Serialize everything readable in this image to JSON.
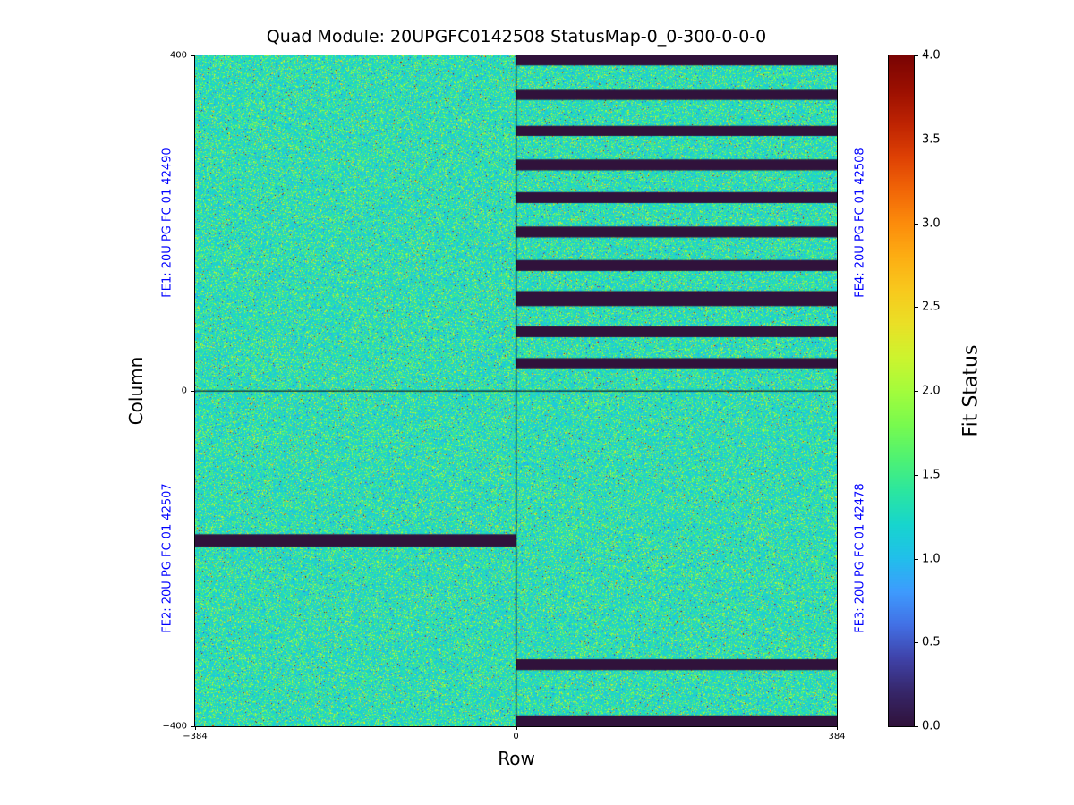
{
  "colors": {
    "fe_label": "#0000ff",
    "stripe": "#30123b",
    "axis": "#000000"
  },
  "chart_data": {
    "type": "heatmap",
    "title": "Quad Module: 20UPGFC0142508 StatusMap-0_0-300-0-0-0",
    "xlabel": "Row",
    "ylabel": "Column",
    "value_label": "Fit Status",
    "value_range": [
      0,
      4
    ],
    "x_range": [
      -384,
      384
    ],
    "y_range": [
      -400,
      400
    ],
    "colormap": "turbo",
    "x_ticks": [
      {
        "value": -384,
        "label": "−384"
      },
      {
        "value": 0,
        "label": "0"
      },
      {
        "value": 384,
        "label": "384"
      }
    ],
    "y_ticks": [
      {
        "value": 400,
        "label": "400"
      },
      {
        "value": 0,
        "label": "0"
      },
      {
        "value": -400,
        "label": "−400"
      }
    ],
    "colorbar_ticks": [
      {
        "value": 4.0,
        "label": "4.0"
      },
      {
        "value": 3.5,
        "label": "3.5"
      },
      {
        "value": 3.0,
        "label": "3.0"
      },
      {
        "value": 2.5,
        "label": "2.5"
      },
      {
        "value": 2.0,
        "label": "2.0"
      },
      {
        "value": 1.5,
        "label": "1.5"
      },
      {
        "value": 1.0,
        "label": "1.0"
      },
      {
        "value": 0.5,
        "label": "0.5"
      },
      {
        "value": 0.0,
        "label": "0.0"
      }
    ],
    "quadrants": [
      {
        "fe": "FE1",
        "label": "FE1: 20U PG FC 01 42490",
        "x": [
          -384,
          0
        ],
        "y": [
          0,
          400
        ],
        "label_side": "left"
      },
      {
        "fe": "FE2",
        "label": "FE2: 20U PG FC 01 42507",
        "x": [
          -384,
          0
        ],
        "y": [
          -400,
          0
        ],
        "label_side": "left"
      },
      {
        "fe": "FE3",
        "label": "FE3: 20U PG FC 01 42478",
        "x": [
          0,
          384
        ],
        "y": [
          -400,
          0
        ],
        "label_side": "right"
      },
      {
        "fe": "FE4",
        "label": "FE4: 20U PG FC 01 42508",
        "x": [
          0,
          384
        ],
        "y": [
          0,
          400
        ],
        "label_side": "right"
      }
    ],
    "background": {
      "description": "speckled noise of fit-status values, predominantly ~1.0 (cyan) with scattered 1.3–2.2 (green/yellow) pixels and rare blue/orange outliers",
      "dominant_value": 1.0
    },
    "dead_stripes": [
      {
        "x": [
          0,
          384
        ],
        "y": [
          388,
          400
        ],
        "value": 0
      },
      {
        "x": [
          0,
          384
        ],
        "y": [
          347,
          359
        ],
        "value": 0
      },
      {
        "x": [
          0,
          384
        ],
        "y": [
          304,
          316
        ],
        "value": 0
      },
      {
        "x": [
          0,
          384
        ],
        "y": [
          263,
          276
        ],
        "value": 0
      },
      {
        "x": [
          0,
          384
        ],
        "y": [
          224,
          237
        ],
        "value": 0
      },
      {
        "x": [
          0,
          384
        ],
        "y": [
          183,
          196
        ],
        "value": 0
      },
      {
        "x": [
          0,
          384
        ],
        "y": [
          143,
          156
        ],
        "value": 0
      },
      {
        "x": [
          0,
          384
        ],
        "y": [
          101,
          119
        ],
        "value": 0
      },
      {
        "x": [
          0,
          384
        ],
        "y": [
          64,
          77
        ],
        "value": 0
      },
      {
        "x": [
          0,
          384
        ],
        "y": [
          27,
          39
        ],
        "value": 0
      },
      {
        "x": [
          -384,
          0
        ],
        "y": [
          -186,
          -171
        ],
        "value": 0
      },
      {
        "x": [
          0,
          384
        ],
        "y": [
          -333,
          -320
        ],
        "value": 0
      },
      {
        "x": [
          0,
          384
        ],
        "y": [
          -400,
          -387
        ],
        "value": 0
      }
    ]
  }
}
